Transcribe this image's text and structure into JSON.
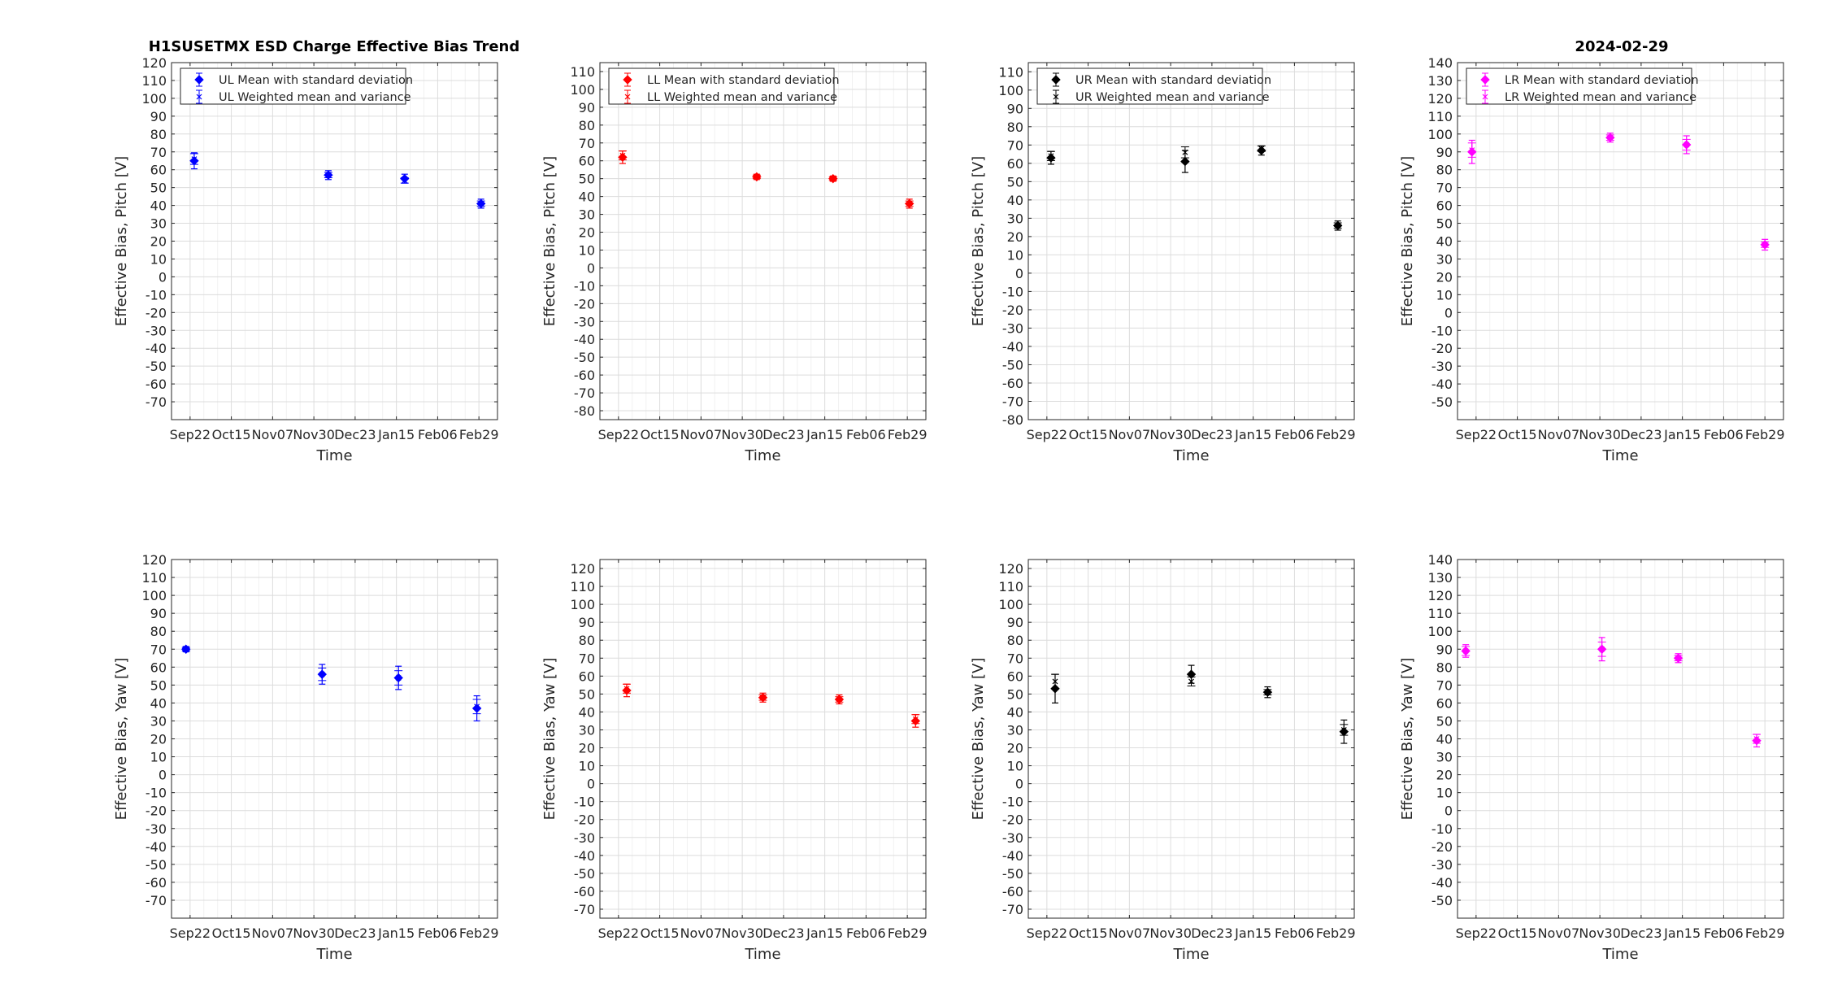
{
  "figure": {
    "title_left": "H1SUSETMX ESD Charge Effective Bias Trend",
    "title_right": "2024-02-29"
  },
  "chart_data": [
    {
      "type": "scatter",
      "quadrant": "UL",
      "dof": "Pitch",
      "color": "#0000ff",
      "marker": "diamond",
      "xlabel": "Time",
      "ylabel": "Effective Bias, Pitch [V]",
      "categories": [
        "Sep22",
        "Oct15",
        "Nov07",
        "Nov30",
        "Dec23",
        "Jan15",
        "Feb06",
        "Feb29"
      ],
      "ylim": [
        -80,
        120
      ],
      "yticks": [
        -70,
        -60,
        -50,
        -40,
        -30,
        -20,
        -10,
        0,
        10,
        20,
        30,
        40,
        50,
        60,
        70,
        80,
        90,
        100,
        110,
        120
      ],
      "grid": true,
      "legend_position": "top-left",
      "series": [
        {
          "name": "UL Mean with standard deviation",
          "x": [
            0.1,
            3.35,
            5.2,
            7.05
          ],
          "y": [
            65,
            57,
            55,
            41
          ],
          "err": [
            4.5,
            2.5,
            2.5,
            2.5
          ]
        },
        {
          "name": "UL Weighted mean and variance",
          "x": [
            0.1,
            3.35,
            5.2,
            7.05
          ],
          "y": [
            66,
            57,
            54,
            41
          ],
          "err": [
            3,
            1.5,
            1.5,
            1.5
          ]
        }
      ]
    },
    {
      "type": "scatter",
      "quadrant": "LL",
      "dof": "Pitch",
      "color": "#ff0000",
      "marker": "diamond",
      "xlabel": "Time",
      "ylabel": "Effective Bias, Pitch [V]",
      "categories": [
        "Sep22",
        "Oct15",
        "Nov07",
        "Nov30",
        "Dec23",
        "Jan15",
        "Feb06",
        "Feb29"
      ],
      "ylim": [
        -85,
        115
      ],
      "yticks": [
        -80,
        -70,
        -60,
        -50,
        -40,
        -30,
        -20,
        -10,
        0,
        10,
        20,
        30,
        40,
        50,
        60,
        70,
        80,
        90,
        100,
        110
      ],
      "grid": true,
      "legend_position": "top-left",
      "series": [
        {
          "name": "LL Mean with standard deviation",
          "x": [
            0.1,
            3.35,
            5.2,
            7.05
          ],
          "y": [
            62,
            51,
            50,
            36
          ],
          "err": [
            3.5,
            1.5,
            1.5,
            2.5
          ]
        },
        {
          "name": "LL Weighted mean and variance",
          "x": [
            0.1,
            3.35,
            5.2,
            7.05
          ],
          "y": [
            63,
            51,
            50,
            36
          ],
          "err": [
            2.5,
            1,
            1,
            1.5
          ]
        }
      ]
    },
    {
      "type": "scatter",
      "quadrant": "UR",
      "dof": "Pitch",
      "color": "#000000",
      "marker": "diamond",
      "xlabel": "Time",
      "ylabel": "Effective Bias, Pitch [V]",
      "categories": [
        "Sep22",
        "Oct15",
        "Nov07",
        "Nov30",
        "Dec23",
        "Jan15",
        "Feb06",
        "Feb29"
      ],
      "ylim": [
        -80,
        115
      ],
      "yticks": [
        -80,
        -70,
        -60,
        -50,
        -40,
        -30,
        -20,
        -10,
        0,
        10,
        20,
        30,
        40,
        50,
        60,
        70,
        80,
        90,
        100,
        110
      ],
      "grid": true,
      "legend_position": "top-left",
      "series": [
        {
          "name": "UR Mean with standard deviation",
          "x": [
            0.1,
            3.35,
            5.2,
            7.05
          ],
          "y": [
            63,
            61,
            67,
            26
          ],
          "err": [
            3.5,
            6,
            2.5,
            2.5
          ]
        },
        {
          "name": "UR Weighted mean and variance",
          "x": [
            0.1,
            3.35,
            5.2,
            7.05
          ],
          "y": [
            64,
            66,
            68,
            26
          ],
          "err": [
            2.5,
            3,
            1.5,
            1.5
          ]
        }
      ]
    },
    {
      "type": "scatter",
      "quadrant": "LR",
      "dof": "Pitch",
      "color": "#ff00ff",
      "marker": "diamond",
      "xlabel": "Time",
      "ylabel": "Effective Bias, Pitch [V]",
      "categories": [
        "Sep22",
        "Oct15",
        "Nov07",
        "Nov30",
        "Dec23",
        "Jan15",
        "Feb06",
        "Feb29"
      ],
      "ylim": [
        -60,
        140
      ],
      "yticks": [
        -50,
        -40,
        -30,
        -20,
        -10,
        0,
        10,
        20,
        30,
        40,
        50,
        60,
        70,
        80,
        90,
        100,
        110,
        120,
        130,
        140
      ],
      "grid": true,
      "legend_position": "top-left",
      "series": [
        {
          "name": "LR Mean with standard deviation",
          "x": [
            -0.1,
            3.25,
            5.1,
            7.0
          ],
          "y": [
            90,
            98,
            94,
            38
          ],
          "err": [
            6.5,
            2.5,
            5,
            3
          ]
        },
        {
          "name": "LR Weighted mean and variance",
          "x": [
            -0.1,
            3.25,
            5.1,
            7.0
          ],
          "y": [
            91,
            98,
            94,
            38
          ],
          "err": [
            4,
            1.5,
            3,
            1.5
          ]
        }
      ]
    },
    {
      "type": "scatter",
      "quadrant": "UL",
      "dof": "Yaw",
      "color": "#0000ff",
      "marker": "diamond",
      "xlabel": "Time",
      "ylabel": "Effective Bias, Yaw [V]",
      "categories": [
        "Sep22",
        "Oct15",
        "Nov07",
        "Nov30",
        "Dec23",
        "Jan15",
        "Feb06",
        "Feb29"
      ],
      "ylim": [
        -80,
        120
      ],
      "yticks": [
        -70,
        -60,
        -50,
        -40,
        -30,
        -20,
        -10,
        0,
        10,
        20,
        30,
        40,
        50,
        60,
        70,
        80,
        90,
        100,
        110,
        120
      ],
      "grid": true,
      "series": [
        {
          "name": "UL Mean with standard deviation",
          "x": [
            -0.1,
            3.2,
            5.05,
            6.95
          ],
          "y": [
            70,
            56,
            54,
            37
          ],
          "err": [
            1.5,
            5.5,
            6.5,
            7
          ]
        },
        {
          "name": "UL Weighted mean and variance",
          "x": [
            -0.1,
            3.2,
            5.05,
            6.95
          ],
          "y": [
            70,
            56,
            54,
            38
          ],
          "err": [
            1,
            3.5,
            4,
            4
          ]
        }
      ]
    },
    {
      "type": "scatter",
      "quadrant": "LL",
      "dof": "Yaw",
      "color": "#ff0000",
      "marker": "diamond",
      "xlabel": "Time",
      "ylabel": "Effective Bias, Yaw [V]",
      "categories": [
        "Sep22",
        "Oct15",
        "Nov07",
        "Nov30",
        "Dec23",
        "Jan15",
        "Feb06",
        "Feb29"
      ],
      "ylim": [
        -75,
        125
      ],
      "yticks": [
        -70,
        -60,
        -50,
        -40,
        -30,
        -20,
        -10,
        0,
        10,
        20,
        30,
        40,
        50,
        60,
        70,
        80,
        90,
        100,
        110,
        120
      ],
      "grid": true,
      "series": [
        {
          "name": "LL Mean with standard deviation",
          "x": [
            0.2,
            3.5,
            5.35,
            7.2
          ],
          "y": [
            52,
            48,
            47,
            35
          ],
          "err": [
            3.5,
            2.5,
            2.5,
            3.5
          ]
        },
        {
          "name": "LL Weighted mean and variance",
          "x": [
            0.2,
            3.5,
            5.35,
            7.2
          ],
          "y": [
            53,
            48,
            47,
            36
          ],
          "err": [
            2.5,
            1.5,
            1.5,
            2.5
          ]
        }
      ]
    },
    {
      "type": "scatter",
      "quadrant": "UR",
      "dof": "Yaw",
      "color": "#000000",
      "marker": "diamond",
      "xlabel": "Time",
      "ylabel": "Effective Bias, Yaw [V]",
      "categories": [
        "Sep22",
        "Oct15",
        "Nov07",
        "Nov30",
        "Dec23",
        "Jan15",
        "Feb06",
        "Feb29"
      ],
      "ylim": [
        -75,
        125
      ],
      "yticks": [
        -70,
        -60,
        -50,
        -40,
        -30,
        -20,
        -10,
        0,
        10,
        20,
        30,
        40,
        50,
        60,
        70,
        80,
        90,
        100,
        110,
        120
      ],
      "grid": true,
      "series": [
        {
          "name": "UR Mean with standard deviation",
          "x": [
            0.2,
            3.5,
            5.35,
            7.2
          ],
          "y": [
            53,
            61,
            51,
            29
          ],
          "err": [
            8,
            5,
            3,
            6.5
          ]
        },
        {
          "name": "UR Weighted mean and variance",
          "x": [
            0.2,
            3.5,
            5.35,
            7.2
          ],
          "y": [
            57,
            57,
            51,
            30
          ],
          "err": [
            4,
            2.5,
            1.5,
            3
          ]
        }
      ]
    },
    {
      "type": "scatter",
      "quadrant": "LR",
      "dof": "Yaw",
      "color": "#ff00ff",
      "marker": "diamond",
      "xlabel": "Time",
      "ylabel": "Effective Bias, Yaw [V]",
      "categories": [
        "Sep22",
        "Oct15",
        "Nov07",
        "Nov30",
        "Dec23",
        "Jan15",
        "Feb06",
        "Feb29"
      ],
      "ylim": [
        -60,
        140
      ],
      "yticks": [
        -50,
        -40,
        -30,
        -20,
        -10,
        0,
        10,
        20,
        30,
        40,
        50,
        60,
        70,
        80,
        90,
        100,
        110,
        120,
        130,
        140
      ],
      "grid": true,
      "series": [
        {
          "name": "LR Mean with standard deviation",
          "x": [
            -0.25,
            3.05,
            4.9,
            6.8
          ],
          "y": [
            89,
            90,
            85,
            39
          ],
          "err": [
            3.5,
            6.5,
            2.5,
            3.5
          ]
        },
        {
          "name": "LR Weighted mean and variance",
          "x": [
            -0.25,
            3.05,
            4.9,
            6.8
          ],
          "y": [
            89,
            90,
            85,
            40
          ],
          "err": [
            2.5,
            4,
            1.5,
            2.5
          ]
        }
      ]
    }
  ]
}
